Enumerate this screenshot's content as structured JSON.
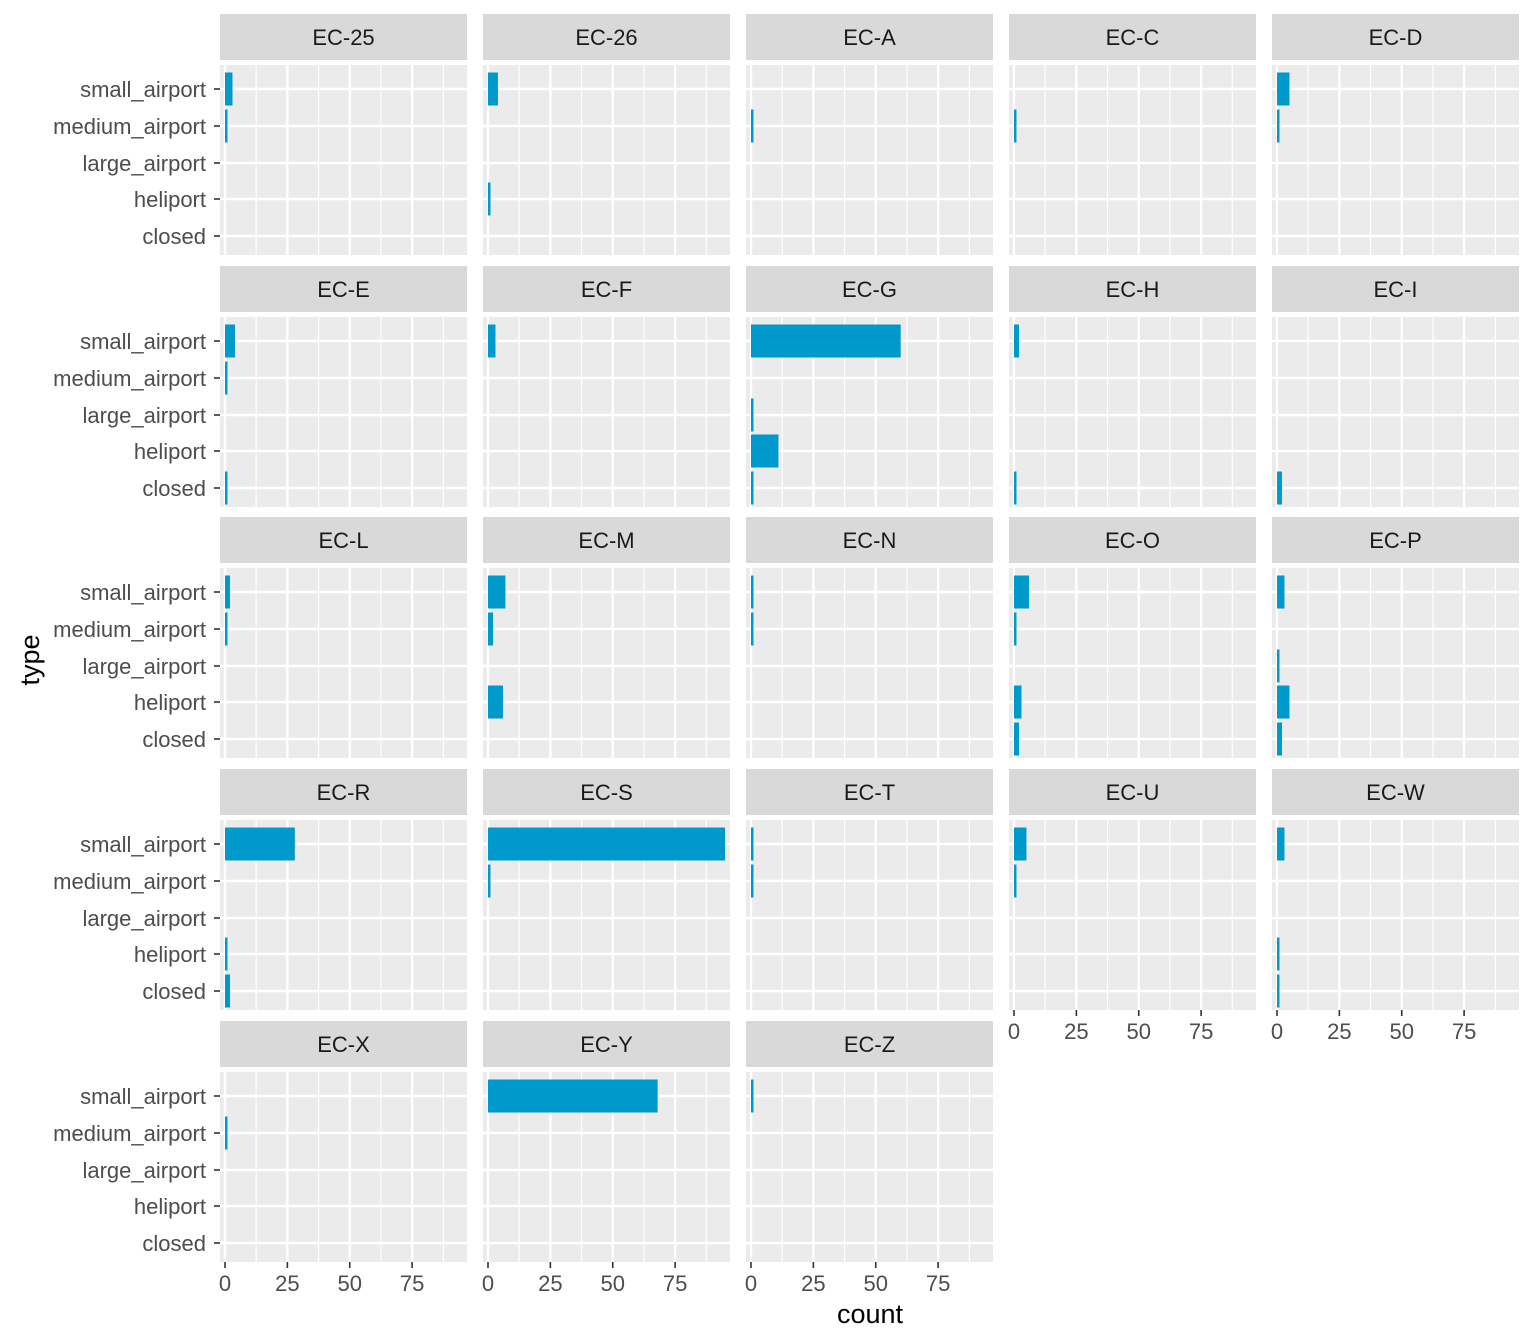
{
  "chart_data": {
    "type": "bar",
    "orientation": "horizontal",
    "facet": "wrap",
    "ncol": 5,
    "xlabel": "count",
    "ylabel": "type",
    "xlim": [
      -2,
      97
    ],
    "x_ticks": [
      0,
      25,
      50,
      75
    ],
    "x_tick_labels": [
      "0",
      "25",
      "50",
      "75"
    ],
    "categories": [
      "small_airport",
      "medium_airport",
      "large_airport",
      "heliport",
      "closed"
    ],
    "grid": true,
    "colors": {
      "bar": "#0099CC",
      "panel_bg": "#EBEBEB",
      "strip_bg": "#D9D9D9",
      "grid": "#FFFFFF",
      "tick_text": "#4D4D4D",
      "strip_text": "#1A1A1A"
    },
    "panels": [
      {
        "name": "EC-25",
        "values": [
          3,
          1,
          0,
          0,
          0
        ]
      },
      {
        "name": "EC-26",
        "values": [
          4,
          0,
          0,
          1,
          0
        ]
      },
      {
        "name": "EC-A",
        "values": [
          0,
          1,
          0,
          0,
          0
        ]
      },
      {
        "name": "EC-C",
        "values": [
          0,
          1,
          0,
          0,
          0
        ]
      },
      {
        "name": "EC-D",
        "values": [
          5,
          1,
          0,
          0,
          0
        ]
      },
      {
        "name": "EC-E",
        "values": [
          4,
          1,
          0,
          0,
          1
        ]
      },
      {
        "name": "EC-F",
        "values": [
          3,
          0,
          0,
          0,
          0
        ]
      },
      {
        "name": "EC-G",
        "values": [
          60,
          0,
          1,
          11,
          1
        ]
      },
      {
        "name": "EC-H",
        "values": [
          2,
          0,
          0,
          0,
          1
        ]
      },
      {
        "name": "EC-I",
        "values": [
          0,
          0,
          0,
          0,
          2
        ]
      },
      {
        "name": "EC-L",
        "values": [
          2,
          1,
          0,
          0,
          0
        ]
      },
      {
        "name": "EC-M",
        "values": [
          7,
          2,
          0,
          6,
          0
        ]
      },
      {
        "name": "EC-N",
        "values": [
          1,
          1,
          0,
          0,
          0
        ]
      },
      {
        "name": "EC-O",
        "values": [
          6,
          1,
          0,
          3,
          2
        ]
      },
      {
        "name": "EC-P",
        "values": [
          3,
          0,
          1,
          5,
          2
        ]
      },
      {
        "name": "EC-R",
        "values": [
          28,
          0,
          0,
          1,
          2
        ]
      },
      {
        "name": "EC-S",
        "values": [
          95,
          1,
          0,
          0,
          0
        ]
      },
      {
        "name": "EC-T",
        "values": [
          1,
          1,
          0,
          0,
          0
        ]
      },
      {
        "name": "EC-U",
        "values": [
          5,
          1,
          0,
          0,
          0
        ]
      },
      {
        "name": "EC-W",
        "values": [
          3,
          0,
          0,
          1,
          1
        ]
      },
      {
        "name": "EC-X",
        "values": [
          0,
          1,
          0,
          0,
          0
        ]
      },
      {
        "name": "EC-Y",
        "values": [
          68,
          0,
          0,
          0,
          0
        ]
      },
      {
        "name": "EC-Z",
        "values": [
          1,
          0,
          0,
          0,
          0
        ]
      }
    ]
  }
}
